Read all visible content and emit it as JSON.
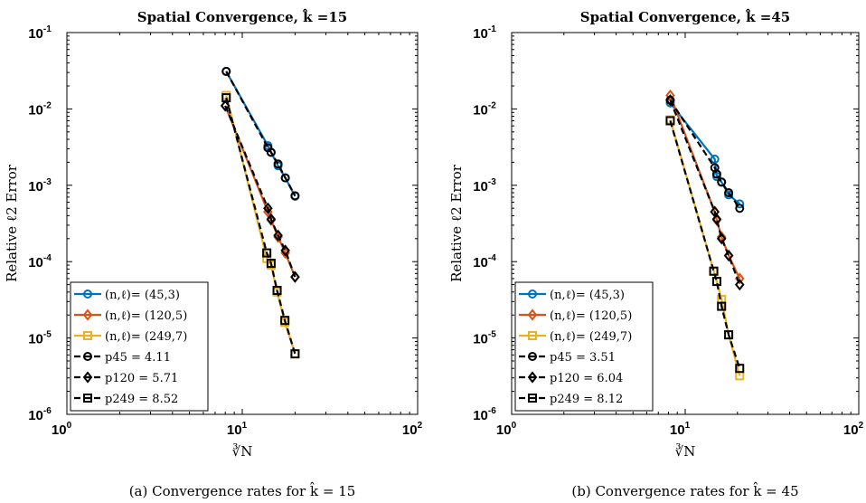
{
  "chart_data": [
    {
      "type": "line",
      "title": "Spatial Convergence, k̂ =15",
      "xlabel": "∛N",
      "ylabel": "Relative ℓ2 Error",
      "xscale": "log",
      "yscale": "log",
      "xlim": [
        1,
        100
      ],
      "ylim": [
        1e-06,
        0.1
      ],
      "xticks": [
        {
          "base": "10",
          "exp": "0"
        },
        {
          "base": "10",
          "exp": "1"
        },
        {
          "base": "10",
          "exp": "2"
        }
      ],
      "yticks": [
        {
          "base": "10",
          "exp": "-6"
        },
        {
          "base": "10",
          "exp": "-5"
        },
        {
          "base": "10",
          "exp": "-4"
        },
        {
          "base": "10",
          "exp": "-3"
        },
        {
          "base": "10",
          "exp": "-2"
        },
        {
          "base": "10",
          "exp": "-1"
        }
      ],
      "legend_position": "bottom-left",
      "caption": "(a) Convergence rates for k̂ = 15",
      "series": [
        {
          "name": "(n,ℓ)= (45,3)",
          "color": "#0072bd",
          "marker": "circle",
          "style": "solid",
          "x": [
            8.1,
            14.0,
            14.6,
            16.0,
            17.6,
            20.0
          ],
          "y": [
            0.031,
            0.0033,
            0.0027,
            0.0018,
            0.00125,
            0.00072
          ]
        },
        {
          "name": "(n,ℓ)= (120,5)",
          "color": "#d95319",
          "marker": "diamond",
          "style": "solid",
          "x": [
            8.0,
            14.0,
            14.6,
            16.0,
            17.6,
            20.0
          ],
          "y": [
            0.011,
            0.00045,
            0.00035,
            0.00021,
            0.00013,
            6.3e-05
          ]
        },
        {
          "name": "(n,ℓ)= (249,7)",
          "color": "#edb120",
          "marker": "square",
          "style": "solid",
          "x": [
            8.1,
            13.8,
            14.6,
            15.8,
            17.5,
            20.0
          ],
          "y": [
            0.015,
            0.00011,
            9e-05,
            4e-05,
            1.6e-05,
            6.2e-06
          ]
        },
        {
          "name": "p45 = 4.11",
          "color": "#000000",
          "marker": "circle",
          "style": "dashed",
          "x": [
            8.1,
            14.0,
            14.6,
            16.0,
            17.6,
            20.0
          ],
          "y": [
            0.031,
            0.0031,
            0.0027,
            0.0019,
            0.00125,
            0.00073
          ]
        },
        {
          "name": "p120 = 5.71",
          "color": "#000000",
          "marker": "diamond",
          "style": "dashed",
          "x": [
            8.0,
            14.0,
            14.6,
            16.0,
            17.6,
            20.0
          ],
          "y": [
            0.011,
            0.0005,
            0.00036,
            0.00022,
            0.00014,
            6.3e-05
          ]
        },
        {
          "name": "p249 = 8.52",
          "color": "#000000",
          "marker": "square",
          "style": "dashed",
          "x": [
            8.1,
            13.8,
            14.6,
            15.8,
            17.5,
            20.0
          ],
          "y": [
            0.014,
            0.00013,
            9.5e-05,
            4.2e-05,
            1.7e-05,
            6.2e-06
          ]
        }
      ]
    },
    {
      "type": "line",
      "title": "Spatial Convergence, k̂ =45",
      "xlabel": "∛N",
      "ylabel": "Relative ℓ2 Error",
      "xscale": "log",
      "yscale": "log",
      "xlim": [
        1,
        100
      ],
      "ylim": [
        1e-06,
        0.1
      ],
      "xticks": [
        {
          "base": "10",
          "exp": "0"
        },
        {
          "base": "10",
          "exp": "1"
        },
        {
          "base": "10",
          "exp": "2"
        }
      ],
      "yticks": [
        {
          "base": "10",
          "exp": "-6"
        },
        {
          "base": "10",
          "exp": "-5"
        },
        {
          "base": "10",
          "exp": "-4"
        },
        {
          "base": "10",
          "exp": "-3"
        },
        {
          "base": "10",
          "exp": "-2"
        },
        {
          "base": "10",
          "exp": "-1"
        }
      ],
      "legend_position": "bottom-left",
      "caption": "(b) Convergence rates for k̂ = 45",
      "series": [
        {
          "name": "(n,ℓ)= (45,3)",
          "color": "#0072bd",
          "marker": "circle",
          "style": "solid",
          "x": [
            8.2,
            14.8,
            15.2,
            16.2,
            17.8,
            20.6
          ],
          "y": [
            0.012,
            0.0022,
            0.0013,
            0.0011,
            0.00075,
            0.00057
          ]
        },
        {
          "name": "(n,ℓ)= (120,5)",
          "color": "#d95319",
          "marker": "diamond",
          "style": "solid",
          "x": [
            8.2,
            14.8,
            15.2,
            16.2,
            17.8,
            20.6
          ],
          "y": [
            0.015,
            0.00045,
            0.00035,
            0.00021,
            0.00012,
            6e-05
          ]
        },
        {
          "name": "(n,ℓ)= (249,7)",
          "color": "#edb120",
          "marker": "square",
          "style": "solid",
          "x": [
            8.2,
            14.6,
            15.2,
            16.2,
            17.8,
            20.6
          ],
          "y": [
            0.0072,
            7.5e-05,
            5.5e-05,
            3.2e-05,
            1.1e-05,
            3.2e-06
          ]
        },
        {
          "name": "p45 = 3.51",
          "color": "#000000",
          "marker": "circle",
          "style": "dashed",
          "x": [
            8.2,
            14.8,
            15.2,
            16.2,
            17.8,
            20.6
          ],
          "y": [
            0.013,
            0.0017,
            0.0014,
            0.0011,
            0.0008,
            0.0005
          ]
        },
        {
          "name": "p120 = 6.04",
          "color": "#000000",
          "marker": "diamond",
          "style": "dashed",
          "x": [
            8.2,
            14.8,
            15.2,
            16.2,
            17.8,
            20.6
          ],
          "y": [
            0.013,
            0.00045,
            0.00036,
            0.0002,
            0.00012,
            5e-05
          ]
        },
        {
          "name": "p249 = 8.12",
          "color": "#000000",
          "marker": "square",
          "style": "dashed",
          "x": [
            8.2,
            14.6,
            15.2,
            16.2,
            17.8,
            20.6
          ],
          "y": [
            0.007,
            7.5e-05,
            5.5e-05,
            2.6e-05,
            1.1e-05,
            4e-06
          ]
        }
      ]
    }
  ]
}
